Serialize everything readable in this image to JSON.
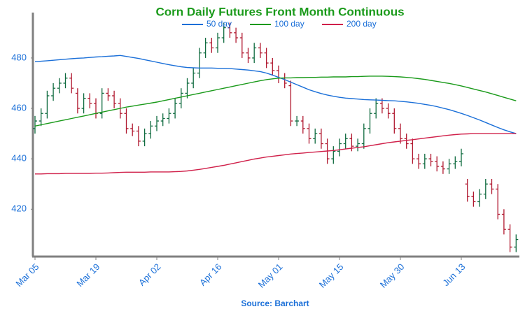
{
  "chart_data": {
    "type": "ohlc",
    "title": "Corn Daily Futures Front Month Continuous",
    "title_color": "#1a9a1a",
    "source": "Source: Barchart",
    "categories": [
      "Mar 05",
      null,
      null,
      null,
      null,
      null,
      null,
      null,
      null,
      null,
      "Mar 19",
      null,
      null,
      null,
      null,
      null,
      null,
      null,
      null,
      null,
      "Apr 02",
      null,
      null,
      null,
      null,
      null,
      null,
      null,
      null,
      null,
      "Apr 16",
      null,
      null,
      null,
      null,
      null,
      null,
      null,
      null,
      null,
      "May 01",
      null,
      null,
      null,
      null,
      null,
      null,
      null,
      null,
      null,
      "May 15",
      null,
      null,
      null,
      null,
      null,
      null,
      null,
      null,
      null,
      "May 30",
      null,
      null,
      null,
      null,
      null,
      null,
      null,
      null,
      null,
      "Jun 13",
      null,
      null,
      null,
      null,
      null,
      null,
      null,
      null,
      null
    ],
    "open": [
      452,
      455,
      458,
      465,
      468,
      470,
      472,
      466,
      460,
      464,
      462,
      458,
      466,
      465,
      462,
      458,
      452,
      451,
      447,
      450,
      453,
      455,
      456,
      458,
      462,
      466,
      470,
      474,
      482,
      486,
      484,
      488,
      492,
      490,
      488,
      482,
      480,
      484,
      482,
      478,
      475,
      472,
      469,
      455,
      455,
      452,
      448,
      450,
      446,
      440,
      443,
      446,
      448,
      445,
      446,
      452,
      458,
      462,
      460,
      458,
      452,
      448,
      446,
      440,
      438,
      440,
      439,
      437,
      436,
      438,
      439,
      430,
      425,
      423,
      426,
      430,
      428,
      418,
      412,
      405
    ],
    "high": [
      457,
      460,
      467,
      470,
      472,
      474,
      474,
      468,
      466,
      466,
      464,
      468,
      468,
      467,
      464,
      460,
      454,
      453,
      452,
      455,
      457,
      458,
      460,
      464,
      468,
      472,
      476,
      484,
      488,
      488,
      490,
      494,
      494,
      492,
      490,
      484,
      486,
      486,
      484,
      480,
      477,
      474,
      471,
      457,
      457,
      454,
      452,
      452,
      448,
      445,
      448,
      450,
      450,
      448,
      454,
      460,
      464,
      464,
      462,
      460,
      454,
      450,
      448,
      442,
      442,
      442,
      441,
      439,
      440,
      441,
      444,
      432,
      427,
      428,
      432,
      432,
      430,
      420,
      414,
      410
    ],
    "low": [
      450,
      453,
      456,
      463,
      466,
      468,
      466,
      458,
      458,
      460,
      456,
      456,
      463,
      460,
      456,
      450,
      449,
      445,
      445,
      448,
      451,
      453,
      454,
      456,
      460,
      464,
      468,
      472,
      480,
      482,
      482,
      486,
      488,
      486,
      480,
      478,
      478,
      480,
      476,
      473,
      470,
      468,
      453,
      453,
      450,
      446,
      446,
      444,
      438,
      438,
      441,
      444,
      443,
      443,
      444,
      450,
      456,
      458,
      456,
      450,
      446,
      444,
      438,
      436,
      436,
      437,
      435,
      434,
      434,
      436,
      437,
      423,
      421,
      421,
      424,
      426,
      416,
      410,
      403,
      403
    ],
    "close": [
      455,
      458,
      465,
      468,
      470,
      472,
      468,
      460,
      464,
      462,
      458,
      466,
      465,
      462,
      458,
      452,
      451,
      447,
      450,
      453,
      455,
      456,
      458,
      462,
      466,
      470,
      474,
      482,
      486,
      484,
      488,
      492,
      490,
      488,
      482,
      480,
      484,
      482,
      478,
      475,
      472,
      470,
      455,
      455,
      452,
      448,
      450,
      446,
      440,
      443,
      446,
      448,
      445,
      446,
      452,
      458,
      462,
      460,
      458,
      452,
      448,
      446,
      440,
      438,
      440,
      439,
      437,
      436,
      438,
      439,
      442,
      425,
      423,
      426,
      430,
      428,
      418,
      412,
      405,
      408
    ],
    "up_color": "#0f6b3f",
    "down_color": "#b0182f",
    "series": [
      {
        "name": "50 day",
        "color": "#1a6fd8",
        "values": [
          478.5,
          478.7,
          478.9,
          479.1,
          479.3,
          479.5,
          479.7,
          479.9,
          480.0,
          480.2,
          480.4,
          480.5,
          480.7,
          480.8,
          481.0,
          480.6,
          480.2,
          479.8,
          479.3,
          478.8,
          478.3,
          477.8,
          477.3,
          476.9,
          476.5,
          476.2,
          476.1,
          476.0,
          476.0,
          476.0,
          475.9,
          475.9,
          475.8,
          475.6,
          475.4,
          475.2,
          474.9,
          474.6,
          474.0,
          473.2,
          472.3,
          471.4,
          470.4,
          469.4,
          468.4,
          467.4,
          466.6,
          465.9,
          465.3,
          464.8,
          464.4,
          464.1,
          463.9,
          463.7,
          463.5,
          463.4,
          463.3,
          463.2,
          463.1,
          463.0,
          462.8,
          462.6,
          462.3,
          462.0,
          461.6,
          461.2,
          460.7,
          460.1,
          459.5,
          458.8,
          458.0,
          457.2,
          456.3,
          455.4,
          454.4,
          453.4,
          452.4,
          451.5,
          450.7,
          450.0
        ]
      },
      {
        "name": "100 day",
        "color": "#1a9a1a",
        "values": [
          453.0,
          453.5,
          454.0,
          454.5,
          455.0,
          455.5,
          456.0,
          456.5,
          457.0,
          457.5,
          458.0,
          458.5,
          459.0,
          459.5,
          460.0,
          460.5,
          460.9,
          461.3,
          461.7,
          462.1,
          462.5,
          463.0,
          463.5,
          464.0,
          464.5,
          465.0,
          465.5,
          466.0,
          466.5,
          467.0,
          467.5,
          468.0,
          468.5,
          469.0,
          469.5,
          470.0,
          470.5,
          471.0,
          471.4,
          471.7,
          472.0,
          472.1,
          472.1,
          472.2,
          472.2,
          472.3,
          472.3,
          472.4,
          472.4,
          472.5,
          472.5,
          472.5,
          472.6,
          472.6,
          472.7,
          472.8,
          472.8,
          472.8,
          472.7,
          472.6,
          472.5,
          472.3,
          472.1,
          471.8,
          471.5,
          471.1,
          470.7,
          470.3,
          469.9,
          469.4,
          468.9,
          468.3,
          467.7,
          467.1,
          466.5,
          465.8,
          465.1,
          464.4,
          463.7,
          463.0
        ]
      },
      {
        "name": "200 day",
        "color": "#d0204a",
        "values": [
          434.0,
          434.0,
          434.1,
          434.1,
          434.1,
          434.2,
          434.2,
          434.2,
          434.2,
          434.2,
          434.3,
          434.3,
          434.4,
          434.5,
          434.6,
          434.7,
          434.7,
          434.7,
          434.7,
          434.8,
          434.8,
          434.8,
          434.8,
          434.9,
          435.0,
          435.2,
          435.5,
          435.8,
          436.2,
          436.6,
          437.0,
          437.4,
          437.9,
          438.4,
          438.9,
          439.4,
          439.9,
          440.3,
          440.7,
          441.0,
          441.3,
          441.6,
          441.9,
          442.1,
          442.3,
          442.5,
          442.7,
          442.9,
          443.1,
          443.3,
          443.6,
          443.9,
          444.2,
          444.5,
          444.8,
          445.2,
          445.6,
          446.0,
          446.4,
          446.7,
          447.0,
          447.3,
          447.6,
          447.9,
          448.2,
          448.5,
          448.8,
          449.1,
          449.4,
          449.6,
          449.8,
          449.9,
          450.0,
          450.0,
          450.0,
          450.0,
          450.0,
          450.0,
          450.0,
          450.0
        ]
      }
    ],
    "ylim": [
      401.5,
      498
    ],
    "yticks": [
      420,
      440,
      460,
      480
    ],
    "grid": false,
    "legend": "top"
  }
}
